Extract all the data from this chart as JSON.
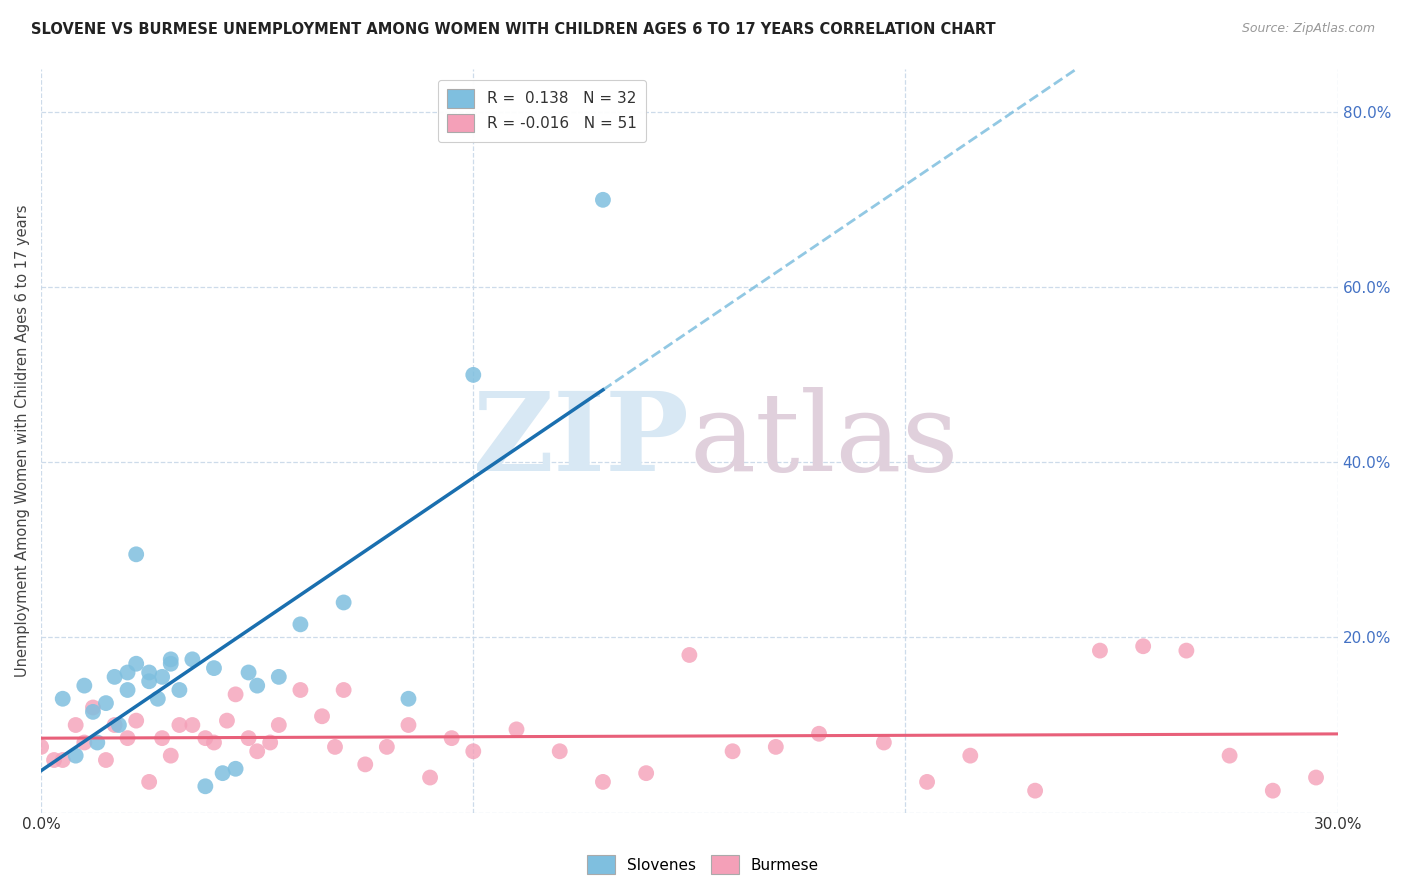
{
  "title": "SLOVENE VS BURMESE UNEMPLOYMENT AMONG WOMEN WITH CHILDREN AGES 6 TO 17 YEARS CORRELATION CHART",
  "source": "Source: ZipAtlas.com",
  "ylabel": "Unemployment Among Women with Children Ages 6 to 17 years",
  "xlim": [
    0.0,
    0.3
  ],
  "ylim": [
    0.0,
    0.85
  ],
  "yticks": [
    0.0,
    0.2,
    0.4,
    0.6,
    0.8
  ],
  "ytick_labels": [
    "",
    "20.0%",
    "40.0%",
    "60.0%",
    "80.0%"
  ],
  "xtick_vals": [
    0.0,
    0.1,
    0.2,
    0.3
  ],
  "xtick_labels": [
    "0.0%",
    "",
    "",
    "30.0%"
  ],
  "background_color": "#ffffff",
  "legend_R_slovene": "0.138",
  "legend_N_slovene": "32",
  "legend_R_burmese": "-0.016",
  "legend_N_burmese": "51",
  "slovene_color": "#7fbfdf",
  "burmese_color": "#f4a0b8",
  "slovene_trendline_color": "#1a6faf",
  "burmese_trendline_color": "#e8607a",
  "grid_color": "#c8d8e8",
  "slovene_x": [
    0.005,
    0.008,
    0.01,
    0.012,
    0.013,
    0.015,
    0.017,
    0.018,
    0.02,
    0.02,
    0.022,
    0.022,
    0.025,
    0.025,
    0.027,
    0.028,
    0.03,
    0.03,
    0.032,
    0.035,
    0.038,
    0.04,
    0.042,
    0.045,
    0.048,
    0.05,
    0.055,
    0.06,
    0.07,
    0.085,
    0.1,
    0.13
  ],
  "slovene_y": [
    0.13,
    0.065,
    0.145,
    0.115,
    0.08,
    0.125,
    0.155,
    0.1,
    0.14,
    0.16,
    0.17,
    0.295,
    0.15,
    0.16,
    0.13,
    0.155,
    0.17,
    0.175,
    0.14,
    0.175,
    0.03,
    0.165,
    0.045,
    0.05,
    0.16,
    0.145,
    0.155,
    0.215,
    0.24,
    0.13,
    0.5,
    0.7
  ],
  "burmese_x": [
    0.0,
    0.003,
    0.005,
    0.008,
    0.01,
    0.012,
    0.015,
    0.017,
    0.02,
    0.022,
    0.025,
    0.028,
    0.03,
    0.032,
    0.035,
    0.038,
    0.04,
    0.043,
    0.045,
    0.048,
    0.05,
    0.053,
    0.055,
    0.06,
    0.065,
    0.068,
    0.07,
    0.075,
    0.08,
    0.085,
    0.09,
    0.095,
    0.1,
    0.11,
    0.12,
    0.13,
    0.14,
    0.15,
    0.16,
    0.17,
    0.18,
    0.195,
    0.205,
    0.215,
    0.23,
    0.245,
    0.255,
    0.265,
    0.275,
    0.285,
    0.295
  ],
  "burmese_y": [
    0.075,
    0.06,
    0.06,
    0.1,
    0.08,
    0.12,
    0.06,
    0.1,
    0.085,
    0.105,
    0.035,
    0.085,
    0.065,
    0.1,
    0.1,
    0.085,
    0.08,
    0.105,
    0.135,
    0.085,
    0.07,
    0.08,
    0.1,
    0.14,
    0.11,
    0.075,
    0.14,
    0.055,
    0.075,
    0.1,
    0.04,
    0.085,
    0.07,
    0.095,
    0.07,
    0.035,
    0.045,
    0.18,
    0.07,
    0.075,
    0.09,
    0.08,
    0.035,
    0.065,
    0.025,
    0.185,
    0.19,
    0.185,
    0.065,
    0.025,
    0.04
  ]
}
